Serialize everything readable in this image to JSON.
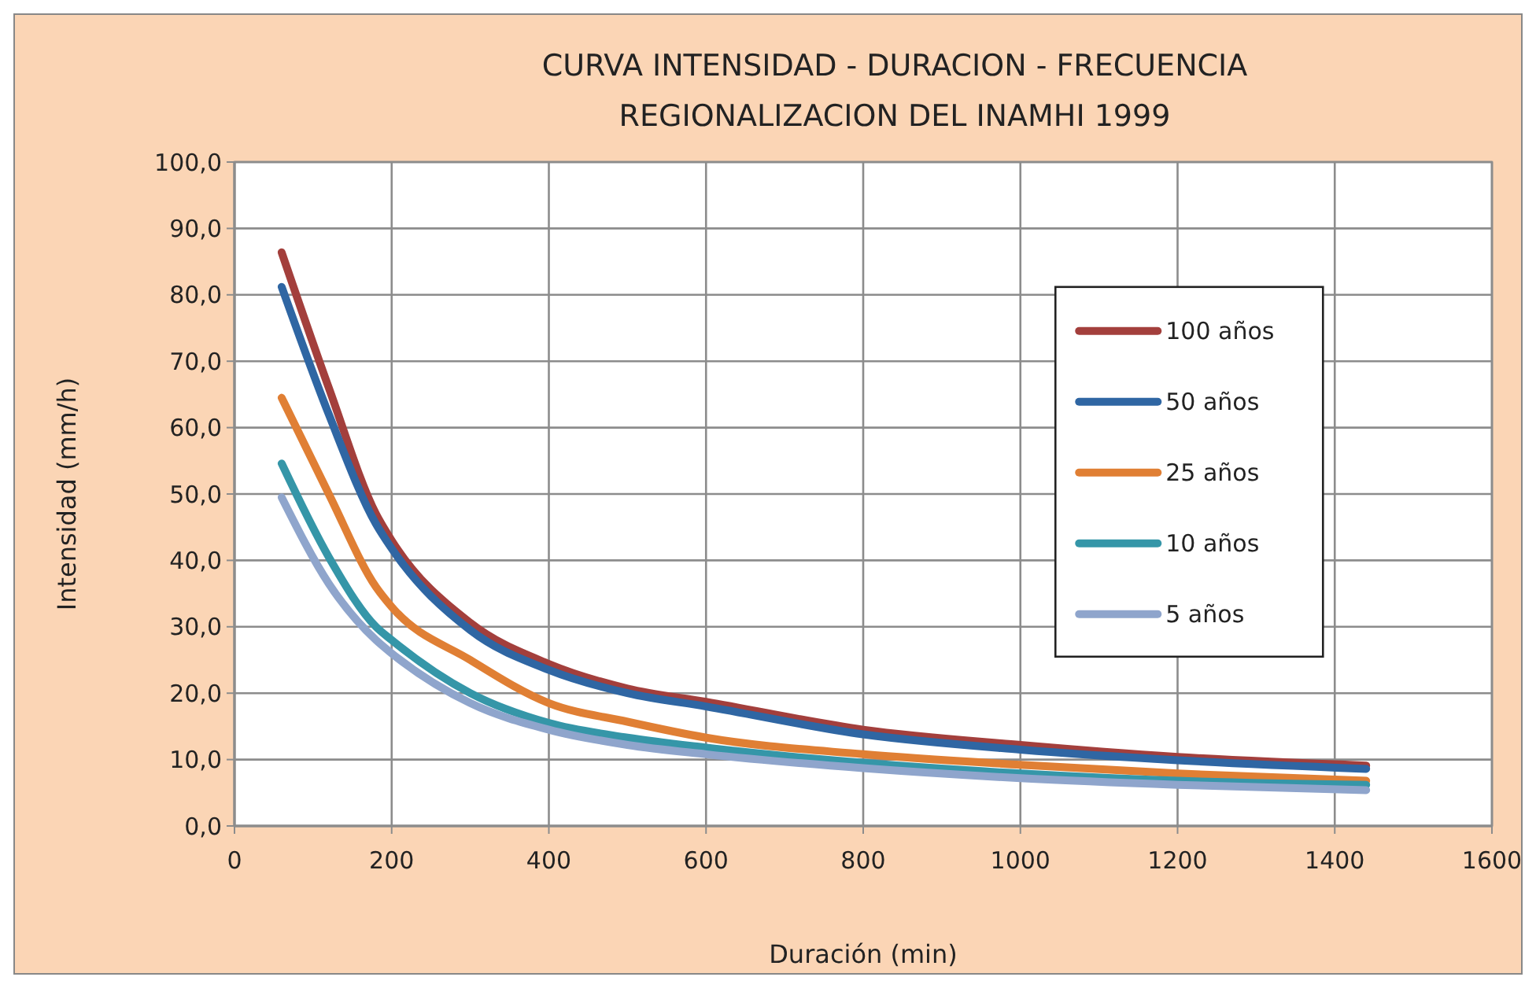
{
  "chart_data": {
    "type": "line",
    "title": "CURVA INTENSIDAD - DURACION - FRECUENCIA",
    "subtitle": "REGIONALIZACION DEL INAMHI 1999",
    "xlabel": "Duración (min)",
    "ylabel": "Intensidad (mm/h)",
    "x": [
      60,
      120,
      180,
      200,
      300,
      400,
      500,
      600,
      800,
      1000,
      1200,
      1440
    ],
    "series": [
      {
        "name": "100 años",
        "color": "#a33f3c",
        "values": [
          86.4,
          66,
          47,
          43,
          30.6,
          24.4,
          20.7,
          18.7,
          14.5,
          12.2,
          10.4,
          9.1
        ]
      },
      {
        "name": "50 años",
        "color": "#2f66a3",
        "values": [
          81.2,
          62,
          45.5,
          41.8,
          29.5,
          23.5,
          20,
          18,
          13.8,
          11.5,
          9.9,
          8.6
        ]
      },
      {
        "name": "25 años",
        "color": "#e07f34",
        "values": [
          64.5,
          50,
          36,
          33,
          25,
          18.5,
          15.7,
          13.3,
          10.8,
          9.2,
          7.9,
          6.8
        ]
      },
      {
        "name": "10 años",
        "color": "#3596a8",
        "values": [
          54.6,
          40.5,
          30,
          28,
          20,
          15.5,
          13.3,
          11.8,
          9.5,
          7.9,
          6.8,
          6.2
        ]
      },
      {
        "name": "5 años",
        "color": "#8fa5cc",
        "values": [
          49.5,
          36.5,
          28,
          26,
          18.5,
          14.5,
          12.2,
          10.8,
          8.7,
          7.2,
          6.2,
          5.4
        ]
      }
    ],
    "xlim": [
      0,
      1600
    ],
    "xticks": [
      0,
      200,
      400,
      600,
      800,
      1000,
      1200,
      1400,
      1600
    ],
    "ylim": [
      0,
      100
    ],
    "yticks": [
      {
        "value": 0,
        "label": "0,0"
      },
      {
        "value": 10,
        "label": "10,0"
      },
      {
        "value": 20,
        "label": "20,0"
      },
      {
        "value": 30,
        "label": "30,0"
      },
      {
        "value": 40,
        "label": "40,0"
      },
      {
        "value": 50,
        "label": "50,0"
      },
      {
        "value": 60,
        "label": "60,0"
      },
      {
        "value": 70,
        "label": "70,0"
      },
      {
        "value": 80,
        "label": "80,0"
      },
      {
        "value": 90,
        "label": "90,0"
      },
      {
        "value": 100,
        "label": "100,0"
      }
    ],
    "grid": true,
    "legend": "right",
    "marker": "none",
    "line_style": "solid"
  }
}
